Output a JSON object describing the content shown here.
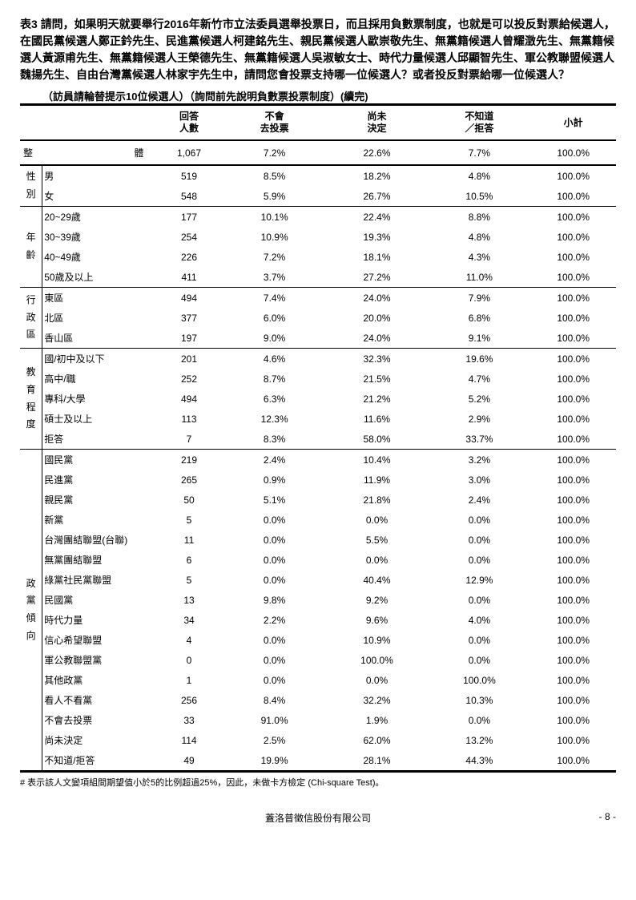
{
  "title_label": "表3",
  "title_text": "請問，如果明天就要舉行2016年新竹市立法委員選舉投票日，而且採用負數票制度，也就是可以投反對票給候選人，在國民黨候選人鄭正鈐先生、民進黨候選人柯建銘先生、親民黨候選人歐崇敬先生、無黨籍候選人曾耀澂先生、無黨籍候選人黃源甫先生、無黨籍候選人王榮德先生、無黨籍候選人吳淑敏女士、時代力量候選人邱顯智先生、軍公教聯盟候選人魏揚先生、自由台灣黨候選人林家宇先生中，請問您會投票支持哪一位候選人？或者投反對票給哪一位候選人？",
  "subtitle": "（訪員請輪替提示10位候選人）（詢問前先說明負數票投票制度）(續完)",
  "headers": {
    "count": "回答\n人數",
    "novote": "不會\n去投票",
    "undecided": "尚未\n決定",
    "dontknow": "不知道\n／拒答",
    "subtotal": "小計"
  },
  "overall": {
    "label_a": "整",
    "label_b": "體",
    "count": "1,067",
    "v1": "7.2%",
    "v2": "22.6%",
    "v3": "7.7%",
    "sub": "100.0%"
  },
  "groups": [
    {
      "cat": "性別",
      "rows": [
        {
          "label": "男",
          "count": "519",
          "v1": "8.5%",
          "v2": "18.2%",
          "v3": "4.8%",
          "sub": "100.0%"
        },
        {
          "label": "女",
          "count": "548",
          "v1": "5.9%",
          "v2": "26.7%",
          "v3": "10.5%",
          "sub": "100.0%"
        }
      ]
    },
    {
      "cat": "年齡",
      "rows": [
        {
          "label": "20~29歲",
          "count": "177",
          "v1": "10.1%",
          "v2": "22.4%",
          "v3": "8.8%",
          "sub": "100.0%"
        },
        {
          "label": "30~39歲",
          "count": "254",
          "v1": "10.9%",
          "v2": "19.3%",
          "v3": "4.8%",
          "sub": "100.0%"
        },
        {
          "label": "40~49歲",
          "count": "226",
          "v1": "7.2%",
          "v2": "18.1%",
          "v3": "4.3%",
          "sub": "100.0%"
        },
        {
          "label": "50歲及以上",
          "count": "411",
          "v1": "3.7%",
          "v2": "27.2%",
          "v3": "11.0%",
          "sub": "100.0%"
        }
      ]
    },
    {
      "cat": "行政區",
      "rows": [
        {
          "label": "東區",
          "count": "494",
          "v1": "7.4%",
          "v2": "24.0%",
          "v3": "7.9%",
          "sub": "100.0%"
        },
        {
          "label": "北區",
          "count": "377",
          "v1": "6.0%",
          "v2": "20.0%",
          "v3": "6.8%",
          "sub": "100.0%"
        },
        {
          "label": "香山區",
          "count": "197",
          "v1": "9.0%",
          "v2": "24.0%",
          "v3": "9.1%",
          "sub": "100.0%"
        }
      ]
    },
    {
      "cat": "教育程度",
      "rows": [
        {
          "label": "國/初中及以下",
          "count": "201",
          "v1": "4.6%",
          "v2": "32.3%",
          "v3": "19.6%",
          "sub": "100.0%"
        },
        {
          "label": "高中/職",
          "count": "252",
          "v1": "8.7%",
          "v2": "21.5%",
          "v3": "4.7%",
          "sub": "100.0%"
        },
        {
          "label": "專科/大學",
          "count": "494",
          "v1": "6.3%",
          "v2": "21.2%",
          "v3": "5.2%",
          "sub": "100.0%"
        },
        {
          "label": "碩士及以上",
          "count": "113",
          "v1": "12.3%",
          "v2": "11.6%",
          "v3": "2.9%",
          "sub": "100.0%"
        },
        {
          "label": "拒答",
          "count": "7",
          "v1": "8.3%",
          "v2": "58.0%",
          "v3": "33.7%",
          "sub": "100.0%"
        }
      ]
    },
    {
      "cat": "政黨傾向",
      "rows": [
        {
          "label": "國民黨",
          "count": "219",
          "v1": "2.4%",
          "v2": "10.4%",
          "v3": "3.2%",
          "sub": "100.0%"
        },
        {
          "label": "民進黨",
          "count": "265",
          "v1": "0.9%",
          "v2": "11.9%",
          "v3": "3.0%",
          "sub": "100.0%"
        },
        {
          "label": "親民黨",
          "count": "50",
          "v1": "5.1%",
          "v2": "21.8%",
          "v3": "2.4%",
          "sub": "100.0%"
        },
        {
          "label": "新黨",
          "count": "5",
          "v1": "0.0%",
          "v2": "0.0%",
          "v3": "0.0%",
          "sub": "100.0%"
        },
        {
          "label": "台灣團結聯盟(台聯)",
          "count": "11",
          "v1": "0.0%",
          "v2": "5.5%",
          "v3": "0.0%",
          "sub": "100.0%"
        },
        {
          "label": "無黨團結聯盟",
          "count": "6",
          "v1": "0.0%",
          "v2": "0.0%",
          "v3": "0.0%",
          "sub": "100.0%"
        },
        {
          "label": "綠黨社民黨聯盟",
          "count": "5",
          "v1": "0.0%",
          "v2": "40.4%",
          "v3": "12.9%",
          "sub": "100.0%"
        },
        {
          "label": "民國黨",
          "count": "13",
          "v1": "9.8%",
          "v2": "9.2%",
          "v3": "0.0%",
          "sub": "100.0%"
        },
        {
          "label": "時代力量",
          "count": "34",
          "v1": "2.2%",
          "v2": "9.6%",
          "v3": "4.0%",
          "sub": "100.0%"
        },
        {
          "label": "信心希望聯盟",
          "count": "4",
          "v1": "0.0%",
          "v2": "10.9%",
          "v3": "0.0%",
          "sub": "100.0%"
        },
        {
          "label": "軍公教聯盟黨",
          "count": "0",
          "v1": "0.0%",
          "v2": "100.0%",
          "v3": "0.0%",
          "sub": "100.0%"
        },
        {
          "label": "其他政黨",
          "count": "1",
          "v1": "0.0%",
          "v2": "0.0%",
          "v3": "100.0%",
          "sub": "100.0%"
        },
        {
          "label": "看人不看黨",
          "count": "256",
          "v1": "8.4%",
          "v2": "32.2%",
          "v3": "10.3%",
          "sub": "100.0%"
        },
        {
          "label": "不會去投票",
          "count": "33",
          "v1": "91.0%",
          "v2": "1.9%",
          "v3": "0.0%",
          "sub": "100.0%"
        },
        {
          "label": "尚未決定",
          "count": "114",
          "v1": "2.5%",
          "v2": "62.0%",
          "v3": "13.2%",
          "sub": "100.0%"
        },
        {
          "label": "不知道/拒答",
          "count": "49",
          "v1": "19.9%",
          "v2": "28.1%",
          "v3": "44.3%",
          "sub": "100.0%"
        }
      ]
    }
  ],
  "footnote": "# 表示該人文變項組間期望值小於5的比例超過25%，因此，未做卡方檢定 (Chi-square Test)。",
  "footer_center": "蓋洛普徵信股份有限公司",
  "footer_right": "- 8 -"
}
